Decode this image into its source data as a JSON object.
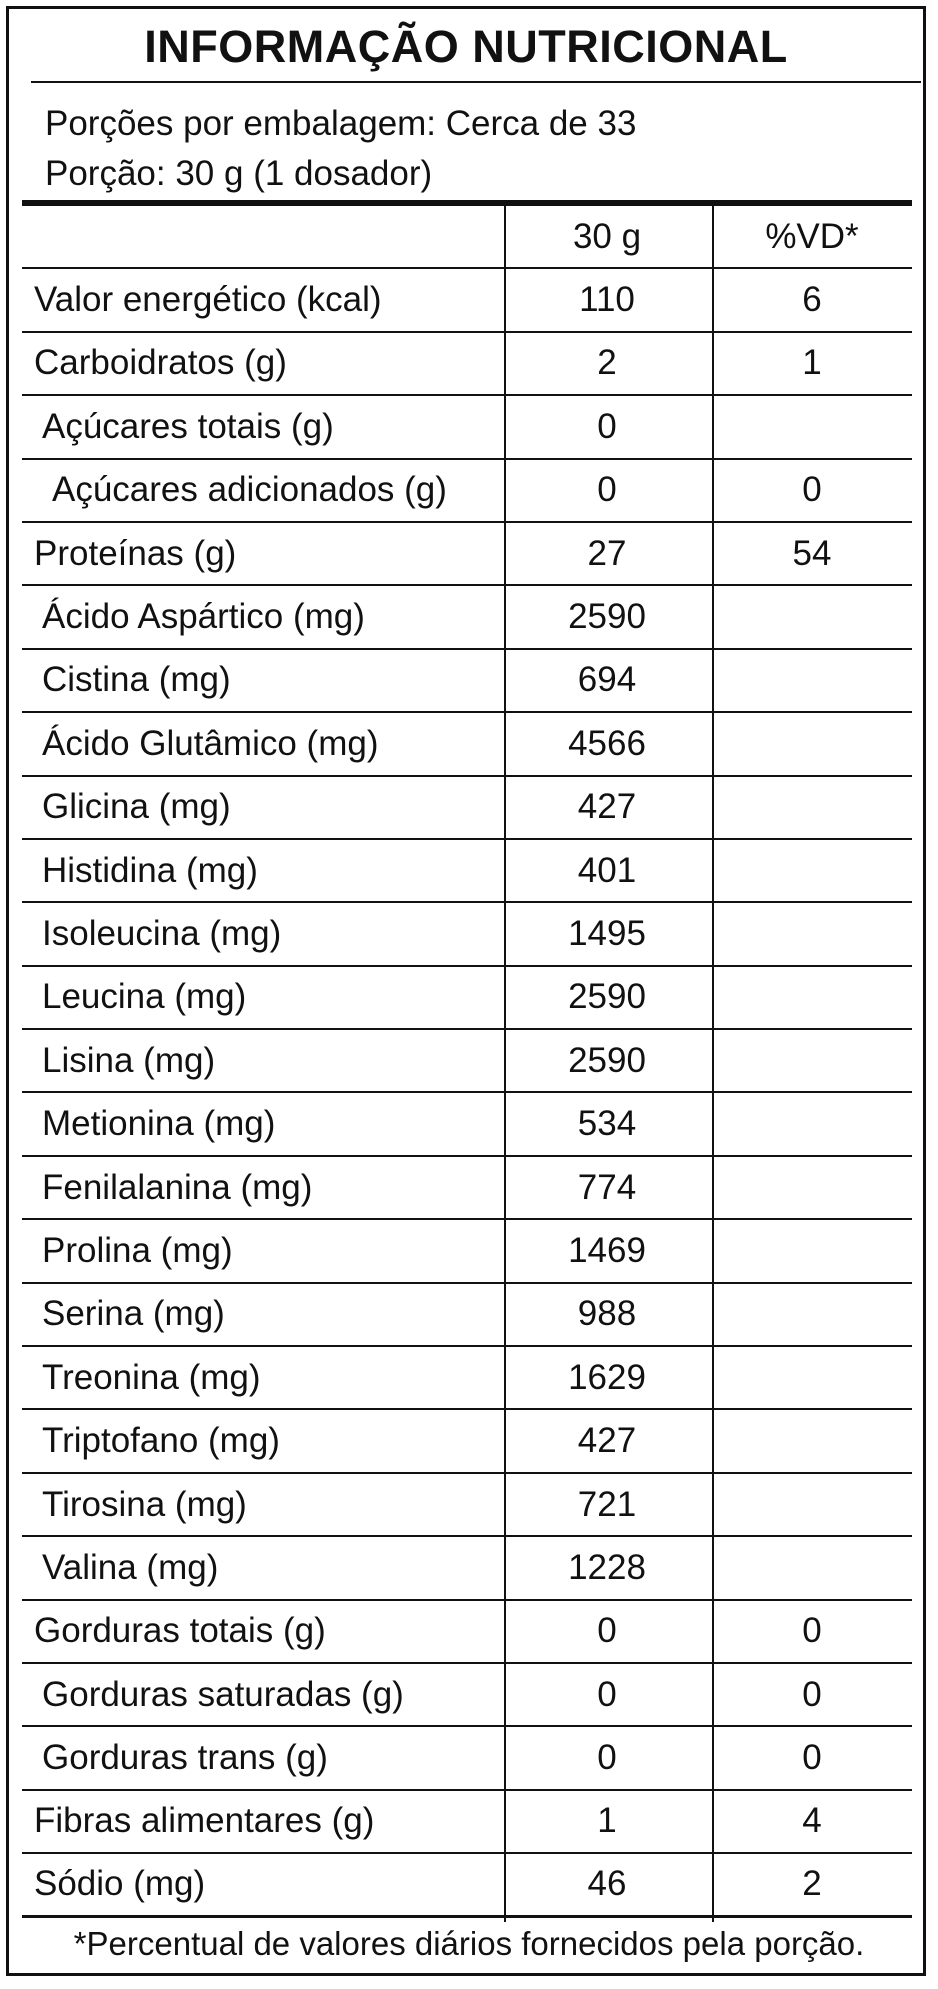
{
  "title": "INFORMAÇÃO NUTRICIONAL",
  "servings_per_package": "Porções por embalagem: Cerca de 33",
  "portion": "Porção: 30 g (1 dosador)",
  "header": {
    "label": "",
    "amount": "30 g",
    "dv": "%VD*"
  },
  "rows": [
    {
      "label": "Valor energético (kcal)",
      "amount": "110",
      "dv": "6",
      "indent": 0
    },
    {
      "label": "Carboidratos (g)",
      "amount": "2",
      "dv": "1",
      "indent": 0
    },
    {
      "label": "Açúcares totais (g)",
      "amount": "0",
      "dv": "",
      "indent": 1
    },
    {
      "label": "Açúcares adicionados (g)",
      "amount": "0",
      "dv": "0",
      "indent": 2
    },
    {
      "label": "Proteínas (g)",
      "amount": "27",
      "dv": "54",
      "indent": 0
    },
    {
      "label": "Ácido Aspártico (mg)",
      "amount": "2590",
      "dv": "",
      "indent": 1
    },
    {
      "label": "Cistina (mg)",
      "amount": "694",
      "dv": "",
      "indent": 1
    },
    {
      "label": "Ácido Glutâmico (mg)",
      "amount": "4566",
      "dv": "",
      "indent": 1
    },
    {
      "label": "Glicina (mg)",
      "amount": "427",
      "dv": "",
      "indent": 1
    },
    {
      "label": "Histidina (mg)",
      "amount": "401",
      "dv": "",
      "indent": 1
    },
    {
      "label": "Isoleucina (mg)",
      "amount": "1495",
      "dv": "",
      "indent": 1
    },
    {
      "label": "Leucina (mg)",
      "amount": "2590",
      "dv": "",
      "indent": 1
    },
    {
      "label": "Lisina (mg)",
      "amount": "2590",
      "dv": "",
      "indent": 1
    },
    {
      "label": "Metionina (mg)",
      "amount": "534",
      "dv": "",
      "indent": 1
    },
    {
      "label": "Fenilalanina (mg)",
      "amount": "774",
      "dv": "",
      "indent": 1
    },
    {
      "label": "Prolina (mg)",
      "amount": "1469",
      "dv": "",
      "indent": 1
    },
    {
      "label": "Serina (mg)",
      "amount": "988",
      "dv": "",
      "indent": 1
    },
    {
      "label": "Treonina (mg)",
      "amount": "1629",
      "dv": "",
      "indent": 1
    },
    {
      "label": "Triptofano (mg)",
      "amount": "427",
      "dv": "",
      "indent": 1
    },
    {
      "label": "Tirosina (mg)",
      "amount": "721",
      "dv": "",
      "indent": 1
    },
    {
      "label": "Valina (mg)",
      "amount": "1228",
      "dv": "",
      "indent": 1
    },
    {
      "label": "Gorduras totais (g)",
      "amount": "0",
      "dv": "0",
      "indent": 0
    },
    {
      "label": "Gorduras saturadas (g)",
      "amount": "0",
      "dv": "0",
      "indent": 1
    },
    {
      "label": "Gorduras trans (g)",
      "amount": "0",
      "dv": "0",
      "indent": 1
    },
    {
      "label": "Fibras alimentares (g)",
      "amount": "1",
      "dv": "4",
      "indent": 0
    },
    {
      "label": "Sódio (mg)",
      "amount": "46",
      "dv": "2",
      "indent": 0
    }
  ],
  "footnote": "*Percentual de valores diários fornecidos pela porção."
}
